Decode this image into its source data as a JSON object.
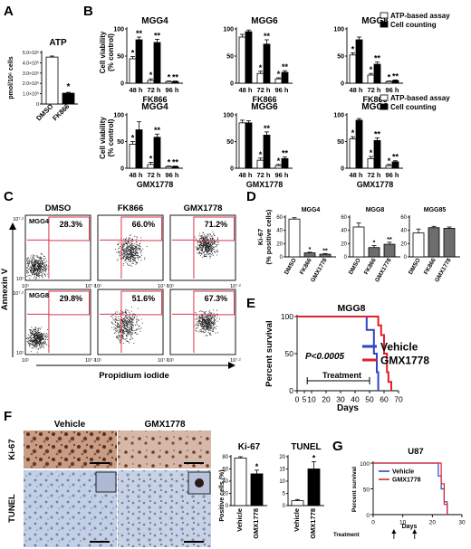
{
  "panels": {
    "A": "A",
    "B": "B",
    "C": "C",
    "D": "D",
    "E": "E",
    "F": "F",
    "G": "G"
  },
  "chart_data": [
    {
      "id": "A",
      "type": "bar",
      "title": "ATP",
      "ylabel": "pmol/10⁶ cells",
      "yticks": [
        "0",
        "1.0×10⁵",
        "2.0×10⁵",
        "3.0×10⁵",
        "4.0×10⁵",
        "5.0×10⁵"
      ],
      "ylim": [
        0,
        500000
      ],
      "categories": [
        "DMSO",
        "FK866"
      ],
      "values": [
        455000,
        105000
      ],
      "errors": [
        10000,
        8000
      ],
      "bar_colors": [
        "#ffffff",
        "#000000"
      ],
      "significance": [
        "",
        "*"
      ]
    },
    {
      "id": "B",
      "type": "bar",
      "ylabel": "Cell viability\n(% control)",
      "yticks": [
        "0",
        "50",
        "100"
      ],
      "ylim": [
        0,
        100
      ],
      "categories": [
        "48 h",
        "72 h",
        "96 h"
      ],
      "legend": [
        "ATP-based assay",
        "Cell counting"
      ],
      "panels": [
        {
          "cell": "MGG4",
          "drug": "FK866",
          "atp": [
            45,
            5,
            3
          ],
          "count": [
            80,
            75,
            3
          ],
          "atp_err": [
            4,
            3,
            1
          ],
          "count_err": [
            5,
            6,
            1
          ],
          "sig_atp": [
            "*",
            "*",
            "*"
          ],
          "sig_count": [
            "**",
            "**",
            "**"
          ]
        },
        {
          "cell": "MGG6",
          "drug": "FK866",
          "atp": [
            85,
            18,
            8
          ],
          "count": [
            95,
            72,
            20
          ],
          "atp_err": [
            5,
            4,
            2
          ],
          "count_err": [
            3,
            8,
            3
          ],
          "sig_atp": [
            "",
            "*",
            "*"
          ],
          "sig_count": [
            "",
            "**",
            "**"
          ]
        },
        {
          "cell": "MGG8",
          "drug": "FK866",
          "atp": [
            52,
            15,
            3
          ],
          "count": [
            80,
            35,
            5
          ],
          "atp_err": [
            4,
            3,
            1
          ],
          "count_err": [
            5,
            4,
            1
          ],
          "sig_atp": [
            "*",
            "*",
            "*"
          ],
          "sig_count": [
            "",
            "**",
            "**"
          ]
        },
        {
          "cell": "MGG4",
          "drug": "GMX1778",
          "atp": [
            45,
            7,
            3
          ],
          "count": [
            72,
            58,
            3
          ],
          "atp_err": [
            5,
            4,
            1
          ],
          "count_err": [
            15,
            6,
            1
          ],
          "sig_atp": [
            "*",
            "*",
            "*"
          ],
          "sig_count": [
            "",
            "**",
            "**"
          ]
        },
        {
          "cell": "MGG6",
          "drug": "GMX1778",
          "atp": [
            85,
            15,
            5
          ],
          "count": [
            85,
            62,
            18
          ],
          "atp_err": [
            5,
            4,
            2
          ],
          "count_err": [
            4,
            6,
            3
          ],
          "sig_atp": [
            "",
            "*",
            "*"
          ],
          "sig_count": [
            "",
            "**",
            "**"
          ]
        },
        {
          "cell": "MGG8",
          "drug": "GMX1778",
          "atp": [
            55,
            18,
            5
          ],
          "count": [
            90,
            52,
            12
          ],
          "atp_err": [
            4,
            4,
            2
          ],
          "count_err": [
            3,
            5,
            2
          ],
          "sig_atp": [
            "*",
            "*",
            "*"
          ],
          "sig_count": [
            "",
            "**",
            "**"
          ]
        }
      ]
    },
    {
      "id": "C",
      "type": "scatter",
      "xlabel": "Propidium iodide",
      "ylabel": "Annexin V",
      "cols": [
        "DMSO",
        "FK866",
        "GMX1778"
      ],
      "rows": [
        "MGG4",
        "MGG8"
      ],
      "percentages": [
        [
          "28.3%",
          "66.0%",
          "71.2%"
        ],
        [
          "29.8%",
          "51.6%",
          "67.3%"
        ]
      ],
      "tick_low": "10¹",
      "tick_high": "10⁷·²"
    },
    {
      "id": "D",
      "type": "bar",
      "ylabel": "Ki-67\n(% positive cells)",
      "yticks": [
        "0",
        "20",
        "40",
        "60"
      ],
      "ylim": [
        0,
        60
      ],
      "categories": [
        "DMSO",
        "FK866",
        "GMX1778"
      ],
      "panels": [
        {
          "cell": "MGG4",
          "values": [
            57,
            6,
            4
          ],
          "errors": [
            2,
            1,
            1
          ],
          "colors": [
            "#ffffff",
            "#6d6d6d",
            "#6d6d6d"
          ],
          "sig": [
            "",
            "*",
            "**"
          ]
        },
        {
          "cell": "MGG8",
          "values": [
            45,
            14,
            19
          ],
          "errors": [
            6,
            3,
            3
          ],
          "colors": [
            "#ffffff",
            "#6d6d6d",
            "#6d6d6d"
          ],
          "sig": [
            "",
            "*",
            "**"
          ]
        },
        {
          "cell": "MGG85",
          "values": [
            36,
            44,
            43
          ],
          "errors": [
            6,
            2,
            2
          ],
          "colors": [
            "#ffffff",
            "#6d6d6d",
            "#6d6d6d"
          ],
          "sig": [
            "",
            "",
            ""
          ]
        }
      ]
    },
    {
      "id": "E",
      "type": "line",
      "title": "MGG8",
      "xlabel": "Days",
      "ylabel": "Percent survival",
      "xlim": [
        0,
        70
      ],
      "xticks": [
        0,
        5,
        10,
        20,
        30,
        40,
        50,
        60,
        70
      ],
      "yticks": [
        0,
        50,
        100
      ],
      "annotation": "P<0.0005",
      "treatment_label": "Treatment",
      "treatment_range": [
        7,
        50
      ],
      "series": [
        {
          "name": "Vehicle",
          "color": "#2b45c7",
          "x": [
            0,
            48,
            48,
            53,
            53,
            55,
            55,
            56,
            56
          ],
          "y": [
            100,
            100,
            82,
            82,
            50,
            50,
            25,
            25,
            0
          ]
        },
        {
          "name": "GMX1778",
          "color": "#e0202a",
          "x": [
            0,
            56,
            56,
            58,
            58,
            60,
            60,
            62,
            62,
            63,
            63,
            65,
            65
          ],
          "y": [
            100,
            100,
            88,
            88,
            75,
            75,
            50,
            50,
            25,
            25,
            12,
            12,
            0
          ]
        }
      ]
    },
    {
      "id": "F",
      "type": "bar",
      "image_cols": [
        "Vehicle",
        "GMX1778"
      ],
      "image_rows": [
        "Ki-67",
        "TUNEL"
      ],
      "ylabel": "Positive cells (%)",
      "bars": [
        {
          "title": "Ki-67",
          "categories": [
            "Vehicle",
            "GMX1778"
          ],
          "values": [
            78,
            52
          ],
          "errors": [
            2,
            6
          ],
          "yticks": [
            "0",
            "20",
            "40",
            "60",
            "80"
          ],
          "ylim": [
            0,
            80
          ],
          "sig": [
            "",
            "*"
          ]
        },
        {
          "title": "TUNEL",
          "categories": [
            "Vehicle",
            "GMX1778"
          ],
          "values": [
            2,
            15
          ],
          "errors": [
            0.5,
            3
          ],
          "yticks": [
            "0",
            "5",
            "10",
            "15",
            "20"
          ],
          "ylim": [
            0,
            20
          ],
          "sig": [
            "",
            "*"
          ]
        }
      ]
    },
    {
      "id": "G",
      "type": "line",
      "title": "U87",
      "xlabel": "Days",
      "ylabel": "Percent survival",
      "xlim": [
        0,
        30
      ],
      "xticks": [
        0,
        10,
        20,
        30
      ],
      "yticks": [
        0,
        50,
        100
      ],
      "treatment_label": "Treatment",
      "series": [
        {
          "name": "Vehicle",
          "color": "#2b45c7",
          "x": [
            0,
            22,
            22,
            23,
            23,
            24,
            24,
            25,
            25
          ],
          "y": [
            100,
            100,
            75,
            75,
            50,
            50,
            25,
            25,
            0
          ]
        },
        {
          "name": "GMX1778",
          "color": "#e0202a",
          "x": [
            0,
            23,
            23,
            24,
            24,
            25,
            25
          ],
          "y": [
            100,
            100,
            60,
            60,
            20,
            20,
            0
          ]
        }
      ]
    }
  ]
}
